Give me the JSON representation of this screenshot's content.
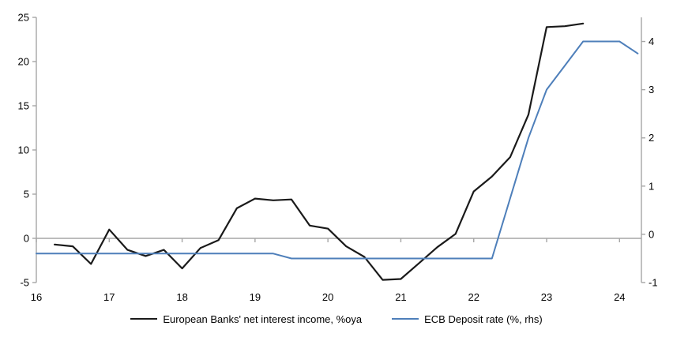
{
  "chart_data": {
    "type": "line",
    "title": "",
    "x_axis": {
      "min": 16,
      "max": 24.3,
      "ticks": [
        16,
        17,
        18,
        19,
        20,
        21,
        22,
        23,
        24
      ],
      "tick_labels": [
        "16",
        "17",
        "18",
        "19",
        "20",
        "21",
        "22",
        "23",
        "24"
      ]
    },
    "left_axis": {
      "min": -5,
      "max": 25,
      "ticks": [
        25,
        20,
        15,
        10,
        5,
        0,
        -5
      ],
      "tick_labels": [
        "25",
        "20",
        "15",
        "10",
        "5",
        "0",
        "-5"
      ]
    },
    "right_axis": {
      "min": -1,
      "max": 4.5,
      "ticks": [
        4,
        3,
        2,
        1,
        0,
        -1
      ],
      "tick_labels": [
        "4",
        "3",
        "2",
        "1",
        "0",
        "-1"
      ]
    },
    "grid": "zero-line-only",
    "legend_position": "bottom-center",
    "series": [
      {
        "name": "European Banks' net interest income, %oya",
        "axis": "left",
        "color": "#1a1a1a",
        "x": [
          16.25,
          16.5,
          16.75,
          17.0,
          17.25,
          17.5,
          17.75,
          18.0,
          18.25,
          18.5,
          18.75,
          19.0,
          19.25,
          19.5,
          19.75,
          20.0,
          20.25,
          20.5,
          20.75,
          21.0,
          21.25,
          21.5,
          21.75,
          22.0,
          22.25,
          22.5,
          22.75,
          23.0,
          23.25,
          23.5
        ],
        "y": [
          -0.7,
          -0.9,
          -2.9,
          1.0,
          -1.3,
          -2.0,
          -1.3,
          -3.4,
          -1.1,
          -0.2,
          3.4,
          4.5,
          4.3,
          4.4,
          1.45,
          1.1,
          -0.9,
          -2.1,
          -4.7,
          -4.6,
          -2.8,
          -1.0,
          0.5,
          5.3,
          7.0,
          9.2,
          14.0,
          23.9,
          24.0,
          24.3
        ]
      },
      {
        "name": "ECB Deposit rate (%, rhs)",
        "axis": "right",
        "color": "#4e7fba",
        "x": [
          16.0,
          16.25,
          16.5,
          16.75,
          17.0,
          17.25,
          17.5,
          17.75,
          18.0,
          18.25,
          18.5,
          18.75,
          19.0,
          19.25,
          19.5,
          19.75,
          20.0,
          20.25,
          20.5,
          20.75,
          21.0,
          21.25,
          21.5,
          21.75,
          22.0,
          22.25,
          22.5,
          22.75,
          23.0,
          23.25,
          23.5,
          23.75,
          24.0,
          24.25
        ],
        "y": [
          -0.4,
          -0.4,
          -0.4,
          -0.4,
          -0.4,
          -0.4,
          -0.4,
          -0.4,
          -0.4,
          -0.4,
          -0.4,
          -0.4,
          -0.4,
          -0.4,
          -0.5,
          -0.5,
          -0.5,
          -0.5,
          -0.5,
          -0.5,
          -0.5,
          -0.5,
          -0.5,
          -0.5,
          -0.5,
          -0.5,
          0.75,
          2.0,
          3.0,
          3.5,
          4.0,
          4.0,
          4.0,
          3.75
        ]
      }
    ]
  },
  "legend": {
    "items": [
      {
        "label": "European Banks' net interest income, %oya"
      },
      {
        "label": "ECB Deposit rate (%, rhs)"
      }
    ]
  },
  "colors": {
    "nii_line": "#1a1a1a",
    "deposit_rate_line": "#4e7fba",
    "axis": "#a6a6a6",
    "text": "#000000",
    "background": "#ffffff"
  }
}
